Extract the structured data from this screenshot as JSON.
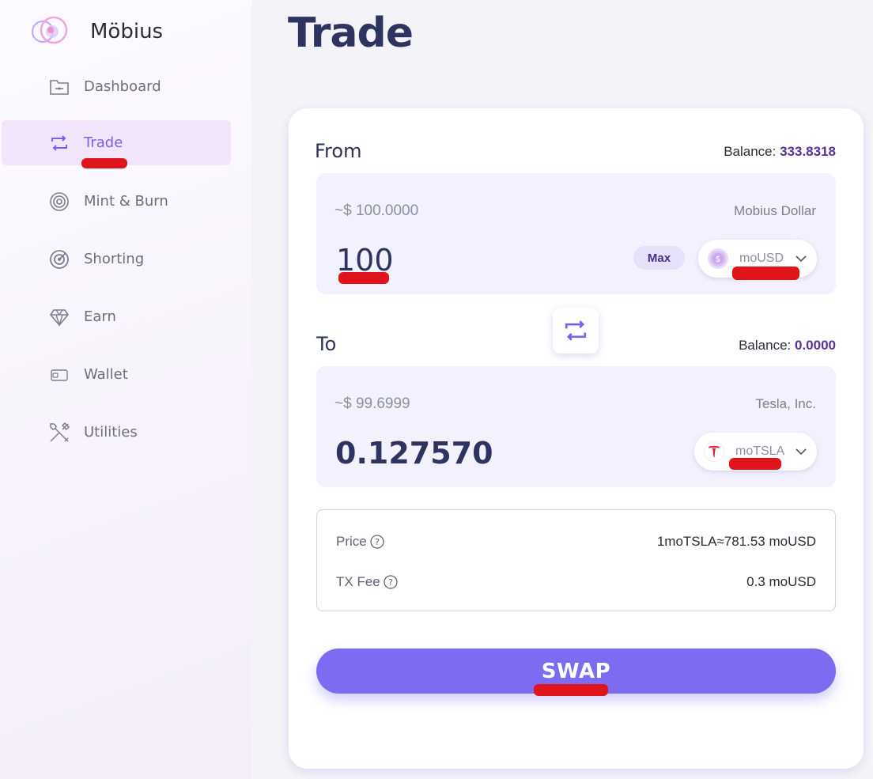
{
  "brand": {
    "name": "Möbius",
    "logo_icon": "mobius-logo-icon"
  },
  "sidebar": {
    "items": [
      {
        "label": "Dashboard",
        "icon": "folder-icon"
      },
      {
        "label": "Trade",
        "icon": "swap-arrows-icon",
        "active": true
      },
      {
        "label": "Mint & Burn",
        "icon": "concentric-circles-icon"
      },
      {
        "label": "Shorting",
        "icon": "target-icon"
      },
      {
        "label": "Earn",
        "icon": "diamond-icon"
      },
      {
        "label": "Wallet",
        "icon": "wallet-icon"
      },
      {
        "label": "Utilities",
        "icon": "tools-icon"
      }
    ]
  },
  "page": {
    "title": "Trade"
  },
  "from": {
    "label": "From",
    "balance_label": "Balance:",
    "balance_value": "333.8318",
    "usd_value": "~$ 100.0000",
    "asset_name": "Mobius Dollar",
    "amount": "100",
    "max_label": "Max",
    "token": "moUSD"
  },
  "to": {
    "label": "To",
    "balance_label": "Balance:",
    "balance_value": "0.0000",
    "usd_value": "~$ 99.6999",
    "asset_name": "Tesla, Inc.",
    "amount": "0.127570",
    "token": "moTSLA"
  },
  "info": {
    "price_label": "Price",
    "price_value": "1moTSLA≈781.53 moUSD",
    "fee_label": "TX Fee",
    "fee_value": "0.3 moUSD"
  },
  "swap": {
    "label": "SWAP"
  },
  "colors": {
    "accent": "#7b6cf2",
    "active_nav_bg": "#f1e4fb",
    "annotation_red": "#e0141b"
  }
}
